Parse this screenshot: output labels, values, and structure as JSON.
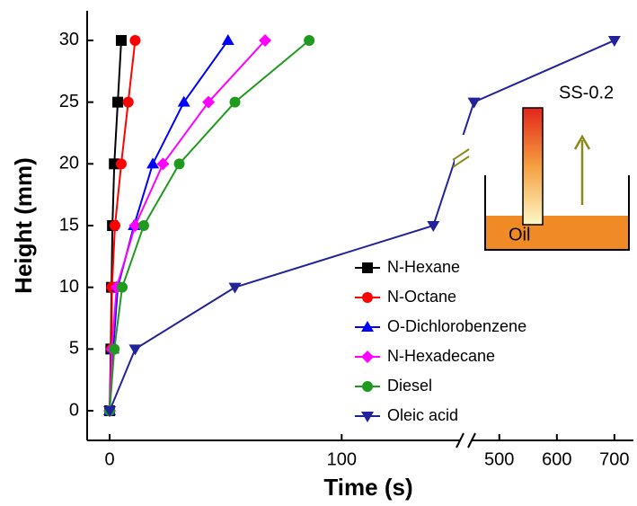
{
  "chart_data": {
    "type": "line",
    "x_label": "Time (s)",
    "y_label": "Height (mm)",
    "x_segments": [
      {
        "xlim": [
          -9.7,
          151
        ],
        "xticks": [
          0,
          100
        ]
      },
      {
        "xlim": [
          452,
          733
        ],
        "xticks": [
          500,
          600,
          700
        ]
      }
    ],
    "ylim": [
      -2.4,
      32.4
    ],
    "yticks": [
      0,
      5,
      10,
      15,
      20,
      25,
      30
    ],
    "legend": "lower right",
    "series": [
      {
        "name": "N-Hexane",
        "color": "#000000",
        "marker": "square",
        "x": [
          0,
          0.5,
          0.8,
          1.2,
          2,
          3.5,
          5
        ],
        "values": [
          0,
          5,
          10,
          15,
          20,
          25,
          30
        ]
      },
      {
        "name": "N-Octane",
        "color": "#ff0000",
        "marker": "circle",
        "x": [
          0,
          0.8,
          1,
          2.3,
          5,
          8,
          11
        ],
        "values": [
          0,
          5,
          10,
          15,
          20,
          25,
          30
        ]
      },
      {
        "name": "O-Dichlorobenzene",
        "color": "#0000ff",
        "marker": "triangle-up",
        "x": [
          0,
          1.5,
          3.5,
          10.5,
          18.6,
          32,
          51
        ],
        "values": [
          0,
          5,
          10,
          15,
          20,
          25,
          30
        ]
      },
      {
        "name": "N-Hexadecane",
        "color": "#ff00ff",
        "marker": "diamond",
        "x": [
          0,
          1,
          3,
          11,
          23,
          42.6,
          67
        ],
        "values": [
          0,
          5,
          10,
          15,
          20,
          25,
          30
        ]
      },
      {
        "name": "Diesel",
        "color": "#1f9a1f",
        "marker": "circle",
        "x": [
          0,
          2,
          5.4,
          14.7,
          30,
          54,
          86
        ],
        "values": [
          0,
          5,
          10,
          15,
          20,
          25,
          30
        ]
      },
      {
        "name": "Oleic acid",
        "color": "#22229a",
        "marker": "triangle-down",
        "x": [
          0,
          11,
          54,
          139.5,
          456,
          700
        ],
        "values": [
          0,
          5,
          10,
          15,
          25,
          30
        ]
      }
    ],
    "inset": {
      "label": "SS-0.2",
      "liquid": "Oil"
    }
  }
}
